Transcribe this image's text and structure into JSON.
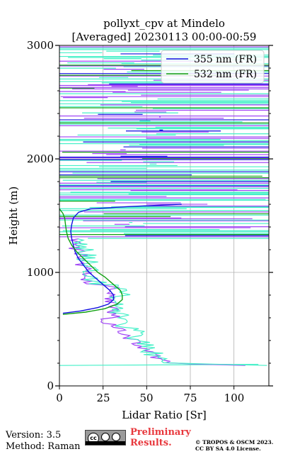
{
  "chart_data": {
    "type": "line",
    "title": "pollyxt_cpv at Mindelo",
    "subtitle": "[Averaged] 20230113 00:00-00:59",
    "xlabel": "Lidar Ratio [Sr]",
    "ylabel": "Height (m)",
    "xlim": [
      0,
      120
    ],
    "ylim": [
      0,
      3000
    ],
    "xticks": [
      "0",
      "25",
      "50",
      "75",
      "100"
    ],
    "yticks": [
      "0",
      "1000",
      "2000",
      "3000"
    ],
    "grid": true,
    "legend_position": "top-right",
    "series": [
      {
        "name": "355 nm (FR)",
        "color": "#1010e0",
        "height": [
          640,
          660,
          690,
          720,
          760,
          800,
          840,
          880,
          920,
          960,
          1000,
          1060,
          1120,
          1180,
          1240,
          1300,
          1360,
          1420,
          1480,
          1530,
          1560,
          1580,
          1600
        ],
        "ratio": [
          2,
          12,
          22,
          28,
          31,
          31,
          29,
          26,
          23,
          20,
          17,
          14,
          11,
          9,
          8,
          7,
          6.5,
          7,
          8,
          11,
          18,
          40,
          70
        ]
      },
      {
        "name": "532 nm (FR)",
        "color": "#10a010",
        "height": [
          630,
          650,
          680,
          720,
          760,
          800,
          840,
          880,
          920,
          960,
          1000,
          1060,
          1120,
          1180,
          1240,
          1300,
          1360,
          1420,
          1480,
          1520,
          1560
        ],
        "ratio": [
          2,
          15,
          26,
          33,
          36,
          36,
          35,
          32,
          29,
          26,
          22,
          18,
          14,
          10,
          7,
          5,
          4,
          3.5,
          3,
          2,
          0
        ]
      }
    ],
    "unlabeled_profiles": [
      {
        "color": "#a045f5",
        "description": "Raman 355 profile (noisy)"
      },
      {
        "color": "#45f0c8",
        "description": "Raman 532 profile (noisy)"
      }
    ]
  },
  "footer": {
    "version": "Version: 3.5",
    "method": "Method: Raman",
    "cc_label": "cc",
    "preliminary_line1": "Preliminary",
    "preliminary_line2": "Results.",
    "copyright_line1": "© TROPOS & OSCM 2023.",
    "copyright_line2": "CC BY SA 4.0 License."
  }
}
